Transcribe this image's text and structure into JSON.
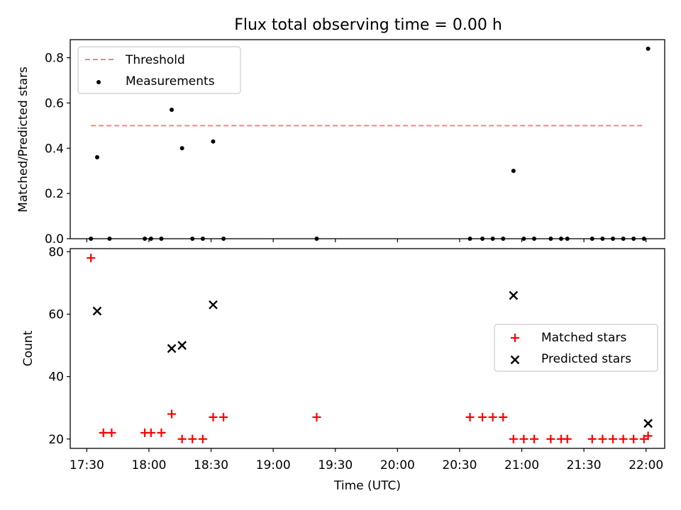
{
  "chart_data": [
    {
      "type": "scatter",
      "title": "Flux total observing time = 0.00 h",
      "xlabel": "",
      "ylabel": "Matched/Predicted stars",
      "xlim": [
        "17:22",
        "22:09"
      ],
      "ylim": [
        0,
        0.88
      ],
      "yticks": [
        "0.0",
        "0.2",
        "0.4",
        "0.6",
        "0.8"
      ],
      "legend_position": "upper-left",
      "series": [
        {
          "name": "Threshold",
          "kind": "dashed-line",
          "color": "#ff7f7f",
          "x": [
            "17:32",
            "21:59"
          ],
          "y": [
            0.5,
            0.5
          ]
        },
        {
          "name": "Measurements",
          "kind": "points",
          "color": "#000000",
          "x": [
            "17:32",
            "17:35",
            "17:41",
            "17:58",
            "18:01",
            "18:06",
            "18:11",
            "18:16",
            "18:21",
            "18:26",
            "18:31",
            "18:36",
            "19:21",
            "20:35",
            "20:41",
            "20:46",
            "20:51",
            "20:56",
            "21:01",
            "21:06",
            "21:14",
            "21:19",
            "21:22",
            "21:34",
            "21:39",
            "21:44",
            "21:49",
            "21:54",
            "21:59",
            "22:01"
          ],
          "y": [
            0,
            0.36,
            0,
            0,
            0,
            0,
            0.57,
            0.4,
            0,
            0,
            0.43,
            0,
            0,
            0,
            0,
            0,
            0,
            0.3,
            0,
            0,
            0,
            0,
            0,
            0,
            0,
            0,
            0,
            0,
            0,
            0.84
          ]
        }
      ]
    },
    {
      "type": "scatter",
      "title": "",
      "xlabel": "Time (UTC)",
      "ylabel": "Count",
      "xlim": [
        "17:22",
        "22:09"
      ],
      "ylim": [
        17,
        81
      ],
      "yticks": [
        "20",
        "40",
        "60",
        "80"
      ],
      "xticks": [
        "17:30",
        "18:00",
        "18:30",
        "19:00",
        "19:30",
        "20:00",
        "20:30",
        "21:00",
        "21:30",
        "22:00"
      ],
      "legend_position": "center-right",
      "series": [
        {
          "name": "Matched stars",
          "marker": "plus",
          "color": "#ff0000",
          "x": [
            "17:32",
            "17:38",
            "17:42",
            "17:58",
            "18:01",
            "18:06",
            "18:11",
            "18:16",
            "18:21",
            "18:26",
            "18:31",
            "18:36",
            "19:21",
            "20:35",
            "20:41",
            "20:46",
            "20:51",
            "20:56",
            "21:01",
            "21:06",
            "21:14",
            "21:19",
            "21:22",
            "21:34",
            "21:39",
            "21:44",
            "21:49",
            "21:54",
            "21:59",
            "22:01"
          ],
          "y": [
            78,
            22,
            22,
            22,
            22,
            22,
            28,
            20,
            20,
            20,
            27,
            27,
            27,
            27,
            27,
            27,
            27,
            20,
            20,
            20,
            20,
            20,
            20,
            20,
            20,
            20,
            20,
            20,
            20,
            21
          ]
        },
        {
          "name": "Predicted stars",
          "marker": "x",
          "color": "#000000",
          "x": [
            "17:35",
            "18:11",
            "18:16",
            "18:31",
            "20:56",
            "22:01"
          ],
          "y": [
            61,
            49,
            50,
            63,
            66,
            25
          ]
        }
      ]
    }
  ]
}
